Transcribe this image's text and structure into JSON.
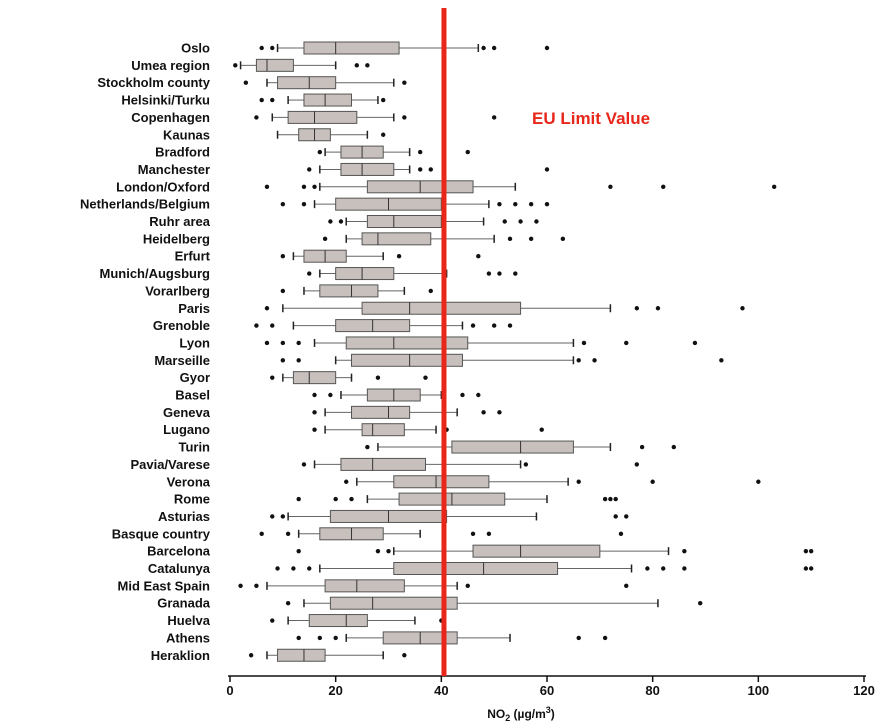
{
  "chart_data": {
    "type": "boxplot",
    "orientation": "horizontal",
    "xlim": [
      0,
      120
    ],
    "x_ticks": [
      "0",
      "20",
      "40",
      "60",
      "80",
      "100",
      "120"
    ],
    "x_tick_values": [
      0,
      20,
      40,
      60,
      80,
      100,
      120
    ],
    "xlabel": "NO",
    "xlabel_sub": "2",
    "xlabel_unit": " (µg/m",
    "xlabel_sup": "3",
    "xlabel_end": ")",
    "grid": false,
    "box_color": "#c8c0bc",
    "reference_line": {
      "value": 40.5,
      "label": "EU Limit Value",
      "color": "#e8261a"
    },
    "categories": [
      "Oslo",
      "Umea region",
      "Stockholm county",
      "Helsinki/Turku",
      "Copenhagen",
      "Kaunas",
      "Bradford",
      "Manchester",
      "London/Oxford",
      "Netherlands/Belgium",
      "Ruhr area",
      "Heidelberg",
      "Erfurt",
      "Munich/Augsburg",
      "Vorarlberg",
      "Paris",
      "Grenoble",
      "Lyon",
      "Marseille",
      "Gyor",
      "Basel",
      "Geneva",
      "Lugano",
      "Turin",
      "Pavia/Varese",
      "Verona",
      "Rome",
      "Asturias",
      "Basque country",
      "Barcelona",
      "Catalunya",
      "Mid East Spain",
      "Granada",
      "Huelva",
      "Athens",
      "Heraklion"
    ],
    "boxes": [
      {
        "wl": 9,
        "q1": 14,
        "med": 20,
        "q3": 32,
        "wh": 47,
        "out": [
          6,
          8,
          48,
          50,
          60
        ]
      },
      {
        "wl": 2,
        "q1": 5,
        "med": 7,
        "q3": 12,
        "wh": 20,
        "out": [
          1,
          24,
          26
        ]
      },
      {
        "wl": 7,
        "q1": 9,
        "med": 15,
        "q3": 20,
        "wh": 31,
        "out": [
          3,
          33
        ]
      },
      {
        "wl": 11,
        "q1": 14,
        "med": 18,
        "q3": 23,
        "wh": 28,
        "out": [
          6,
          8,
          29
        ]
      },
      {
        "wl": 8,
        "q1": 11,
        "med": 16,
        "q3": 24,
        "wh": 31,
        "out": [
          5,
          33,
          50
        ]
      },
      {
        "wl": 9,
        "q1": 13,
        "med": 16,
        "q3": 19,
        "wh": 26,
        "out": [
          29
        ]
      },
      {
        "wl": 18,
        "q1": 21,
        "med": 25,
        "q3": 29,
        "wh": 34,
        "out": [
          17,
          36,
          45
        ]
      },
      {
        "wl": 17,
        "q1": 21,
        "med": 25,
        "q3": 31,
        "wh": 34,
        "out": [
          15,
          36,
          38,
          60
        ]
      },
      {
        "wl": 17,
        "q1": 26,
        "med": 36,
        "q3": 46,
        "wh": 54,
        "out": [
          7,
          14,
          16,
          72,
          82,
          103
        ]
      },
      {
        "wl": 16,
        "q1": 20,
        "med": 30,
        "q3": 40,
        "wh": 49,
        "out": [
          10,
          14,
          51,
          54,
          57,
          60
        ]
      },
      {
        "wl": 22,
        "q1": 26,
        "med": 31,
        "q3": 40,
        "wh": 48,
        "out": [
          19,
          21,
          52,
          55,
          58
        ]
      },
      {
        "wl": 22,
        "q1": 25,
        "med": 28,
        "q3": 38,
        "wh": 50,
        "out": [
          18,
          53,
          57,
          63
        ]
      },
      {
        "wl": 12,
        "q1": 14,
        "med": 18,
        "q3": 22,
        "wh": 29,
        "out": [
          10,
          32,
          47
        ]
      },
      {
        "wl": 17,
        "q1": 20,
        "med": 25,
        "q3": 31,
        "wh": 41,
        "out": [
          15,
          49,
          51,
          54
        ]
      },
      {
        "wl": 14,
        "q1": 17,
        "med": 23,
        "q3": 28,
        "wh": 33,
        "out": [
          10,
          38
        ]
      },
      {
        "wl": 10,
        "q1": 25,
        "med": 34,
        "q3": 55,
        "wh": 72,
        "out": [
          7,
          77,
          81,
          97
        ]
      },
      {
        "wl": 12,
        "q1": 20,
        "med": 27,
        "q3": 34,
        "wh": 44,
        "out": [
          5,
          8,
          46,
          50,
          53
        ]
      },
      {
        "wl": 16,
        "q1": 22,
        "med": 31,
        "q3": 45,
        "wh": 65,
        "out": [
          7,
          10,
          13,
          67,
          75,
          88
        ]
      },
      {
        "wl": 20,
        "q1": 23,
        "med": 34,
        "q3": 44,
        "wh": 65,
        "out": [
          10,
          13,
          66,
          69,
          93
        ]
      },
      {
        "wl": 10,
        "q1": 12,
        "med": 15,
        "q3": 20,
        "wh": 23,
        "out": [
          8,
          28,
          37
        ]
      },
      {
        "wl": 21,
        "q1": 26,
        "med": 31,
        "q3": 36,
        "wh": 40,
        "out": [
          16,
          19,
          44,
          47
        ]
      },
      {
        "wl": 18,
        "q1": 23,
        "med": 30,
        "q3": 34,
        "wh": 43,
        "out": [
          16,
          48,
          51
        ]
      },
      {
        "wl": 18,
        "q1": 25,
        "med": 27,
        "q3": 33,
        "wh": 39,
        "out": [
          16,
          41,
          59
        ]
      },
      {
        "wl": 28,
        "q1": 42,
        "med": 55,
        "q3": 65,
        "wh": 72,
        "out": [
          26,
          78,
          84
        ]
      },
      {
        "wl": 16,
        "q1": 21,
        "med": 27,
        "q3": 37,
        "wh": 55,
        "out": [
          14,
          56,
          77
        ]
      },
      {
        "wl": 24,
        "q1": 31,
        "med": 39,
        "q3": 49,
        "wh": 64,
        "out": [
          22,
          66,
          80,
          100
        ]
      },
      {
        "wl": 26,
        "q1": 32,
        "med": 42,
        "q3": 52,
        "wh": 60,
        "out": [
          13,
          20,
          23,
          71,
          72,
          73
        ]
      },
      {
        "wl": 11,
        "q1": 19,
        "med": 30,
        "q3": 41,
        "wh": 58,
        "out": [
          8,
          10,
          73,
          75
        ]
      },
      {
        "wl": 13,
        "q1": 17,
        "med": 23,
        "q3": 29,
        "wh": 36,
        "out": [
          6,
          11,
          46,
          49,
          74
        ]
      },
      {
        "wl": 31,
        "q1": 46,
        "med": 55,
        "q3": 70,
        "wh": 83,
        "out": [
          13,
          28,
          30,
          86,
          109,
          110
        ]
      },
      {
        "wl": 17,
        "q1": 31,
        "med": 48,
        "q3": 62,
        "wh": 76,
        "out": [
          9,
          12,
          15,
          79,
          82,
          86,
          109,
          110
        ]
      },
      {
        "wl": 7,
        "q1": 18,
        "med": 24,
        "q3": 33,
        "wh": 43,
        "out": [
          2,
          5,
          45,
          75
        ]
      },
      {
        "wl": 14,
        "q1": 19,
        "med": 27,
        "q3": 43,
        "wh": 81,
        "out": [
          11,
          89
        ]
      },
      {
        "wl": 11,
        "q1": 15,
        "med": 22,
        "q3": 26,
        "wh": 35,
        "out": [
          8,
          40
        ]
      },
      {
        "wl": 22,
        "q1": 29,
        "med": 36,
        "q3": 43,
        "wh": 53,
        "out": [
          13,
          17,
          20,
          66,
          71
        ]
      },
      {
        "wl": 7,
        "q1": 9,
        "med": 14,
        "q3": 18,
        "wh": 29,
        "out": [
          4,
          33
        ]
      }
    ]
  }
}
